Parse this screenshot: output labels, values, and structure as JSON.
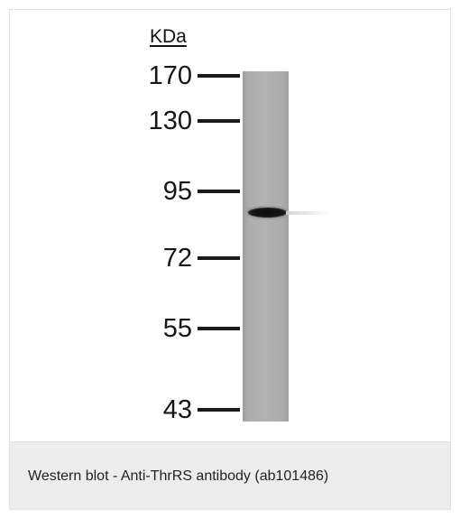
{
  "blot": {
    "unit_label": "KDa",
    "markers": [
      "170",
      "130",
      "95",
      "72",
      "55",
      "43"
    ]
  },
  "caption": {
    "text": "Western blot - Anti-ThrRS antibody (ab101486)"
  }
}
